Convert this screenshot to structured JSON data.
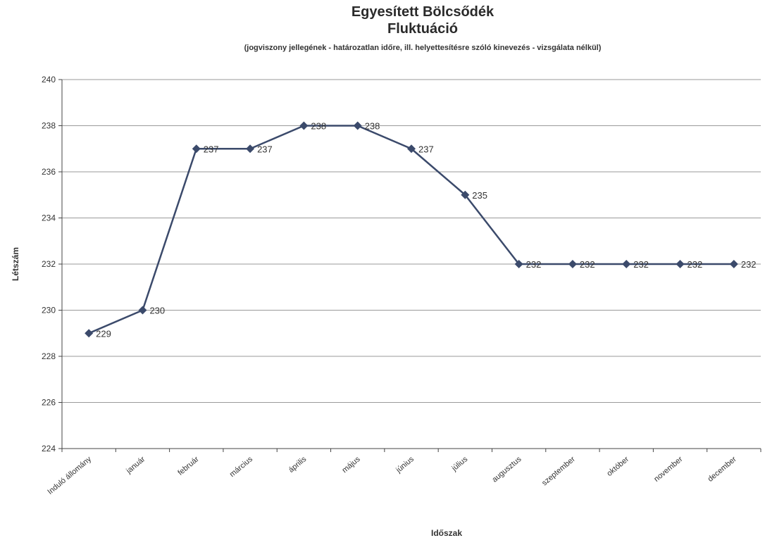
{
  "chart_data": {
    "type": "line",
    "title": "Egyesített Bölcsődék",
    "title_line2": "Fluktuáció",
    "subtitle": "(jogviszony jellegének - határozatlan időre, ill. helyettesítésre szóló kinevezés - vizsgálata nélkül)",
    "xlabel": "Időszak",
    "ylabel": "Létszám",
    "ylim": [
      224,
      240
    ],
    "yticks": [
      "224",
      "226",
      "228",
      "230",
      "232",
      "234",
      "236",
      "238",
      "240"
    ],
    "categories": [
      "Induló állomány",
      "január",
      "február",
      "március",
      "április",
      "május",
      "június",
      "július",
      "augusztus",
      "szeptember",
      "október",
      "november",
      "december"
    ],
    "series": [
      {
        "values": [
          229,
          230,
          237,
          237,
          238,
          238,
          237,
          235,
          232,
          232,
          232,
          232,
          232
        ],
        "labels": [
          "229",
          "230",
          "237",
          "237",
          "238",
          "238",
          "237",
          "235",
          "232",
          "232",
          "232",
          "232",
          "232"
        ]
      }
    ],
    "grid": true,
    "legend": "none",
    "line_color": "#3b4a6b",
    "grid_color": "#9a9a9a"
  }
}
